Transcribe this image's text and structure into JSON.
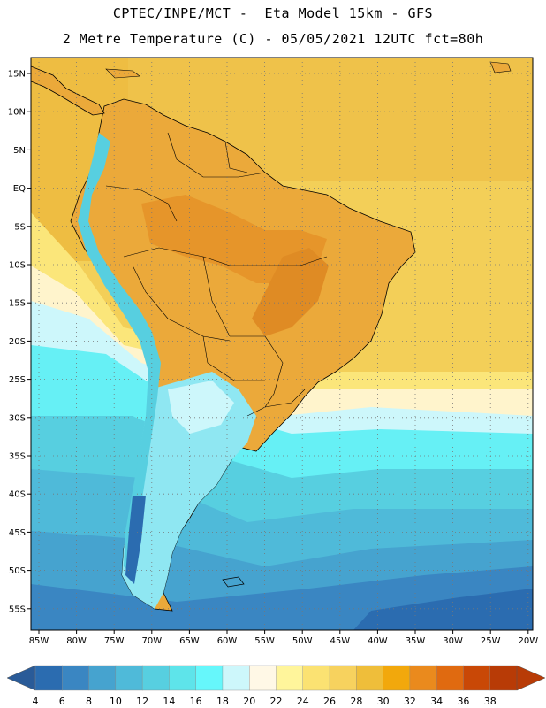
{
  "header": {
    "line1": "CPTEC/INPE/MCT -  Eta Model 15km - GFS",
    "line2": "2 Metre Temperature (C) - 05/05/2021 12UTC fct=80h"
  },
  "map": {
    "region": "South America",
    "lat_range": [
      -58,
      17
    ],
    "lon_range": [
      -86,
      -20
    ],
    "lat_ticks": [
      "15N",
      "10N",
      "5N",
      "EQ",
      "5S",
      "10S",
      "15S",
      "20S",
      "25S",
      "30S",
      "35S",
      "40S",
      "45S",
      "50S",
      "55S"
    ],
    "lon_ticks": [
      "85W",
      "80W",
      "75W",
      "70W",
      "65W",
      "60W",
      "55W",
      "50W",
      "45W",
      "40W",
      "35W",
      "30W",
      "25W",
      "20W"
    ]
  },
  "colorbar": {
    "labels": [
      "4",
      "6",
      "8",
      "10",
      "12",
      "14",
      "16",
      "18",
      "20",
      "22",
      "24",
      "26",
      "28",
      "30",
      "32",
      "34",
      "36",
      "38"
    ],
    "colors": [
      "#2b6cb0",
      "#3a86c2",
      "#46a3cf",
      "#4fbad9",
      "#57cfe0",
      "#5ee4ea",
      "#66f7fb",
      "#cdf7fb",
      "#fff8e6",
      "#fff59b",
      "#fbe272",
      "#f7d25e",
      "#efbe3a",
      "#f2a80c",
      "#ea8a1d",
      "#e06a10",
      "#c94806",
      "#b83b06"
    ],
    "left_arrow_color": "#2a5b98",
    "right_arrow_color": "#b83b06"
  }
}
